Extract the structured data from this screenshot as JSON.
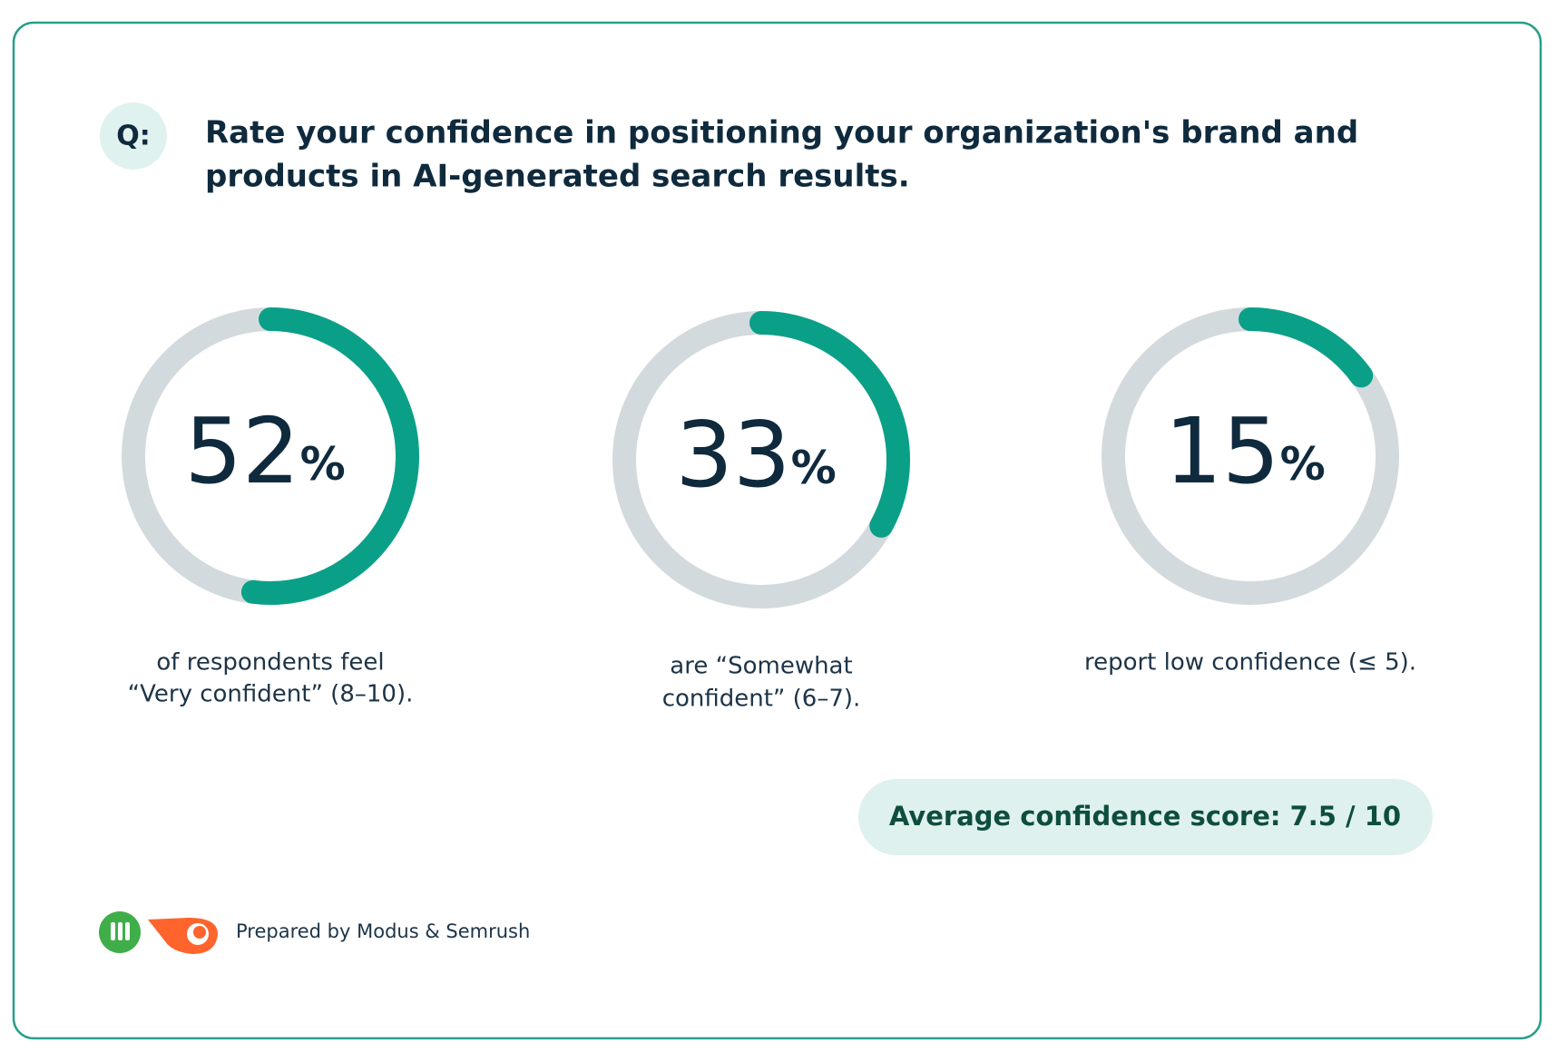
{
  "badge": "Q:",
  "question": [
    "Rate your confidence in positioning your organization's brand and",
    "products in AI-generated search results."
  ],
  "chart_data": {
    "type": "gauge",
    "categories": [
      [
        "of respondents feel",
        "“Very confident” (8–10)."
      ],
      [
        "are “Somewhat",
        "confident” (6–7)."
      ],
      [
        "report low confidence (≤ 5)."
      ]
    ],
    "values": [
      52,
      33,
      15
    ],
    "value_unit": "%",
    "ylim": [
      0,
      100
    ],
    "color": "#0aa088",
    "track_color": "#d3dadd"
  },
  "highlight": "Average confidence score: 7.5 / 10",
  "footer": "Prepared by Modus & Semrush"
}
